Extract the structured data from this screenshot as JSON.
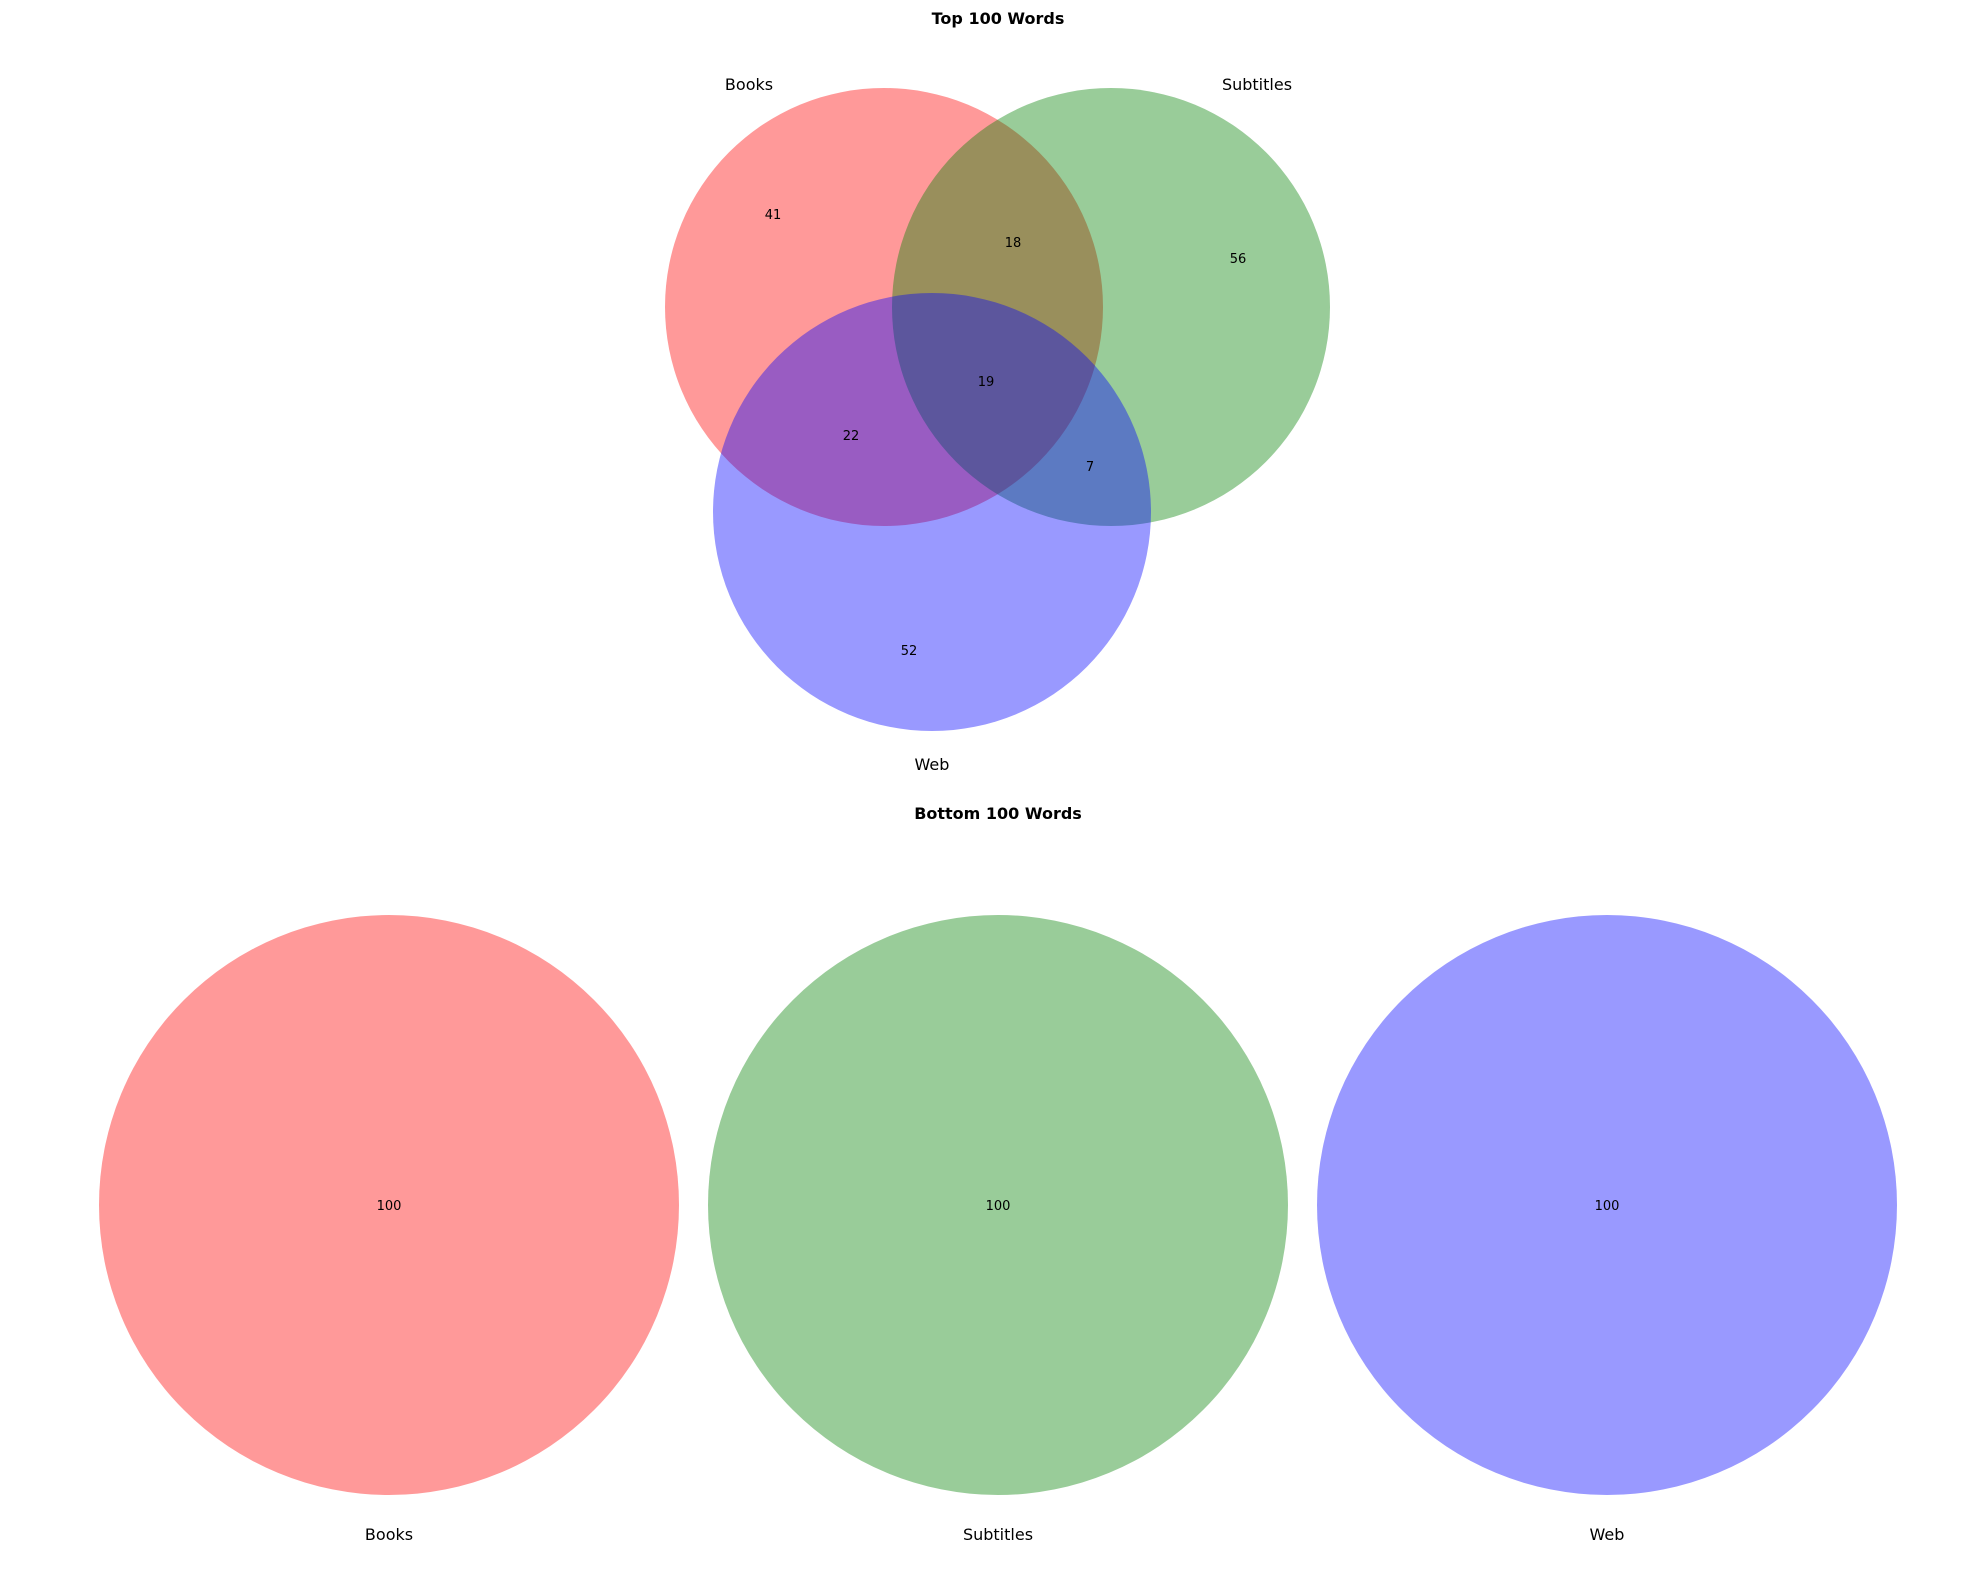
{
  "top": {
    "title": "Top 100 Words",
    "sets": {
      "books": "Books",
      "subtitles": "Subtitles",
      "web": "Web"
    },
    "regions": {
      "books_only": "41",
      "subtitles_only": "56",
      "web_only": "52",
      "books_subtitles": "18",
      "books_web": "22",
      "subtitles_web": "7",
      "all_three": "19"
    }
  },
  "bottom": {
    "title": "Bottom 100 Words",
    "sets": [
      {
        "label": "Books",
        "count": "100"
      },
      {
        "label": "Subtitles",
        "count": "100"
      },
      {
        "label": "Web",
        "count": "100"
      }
    ]
  },
  "colors": {
    "books": "#ff0000",
    "subtitles": "#008000",
    "web": "#0000ff",
    "opacity": 0.4
  }
}
